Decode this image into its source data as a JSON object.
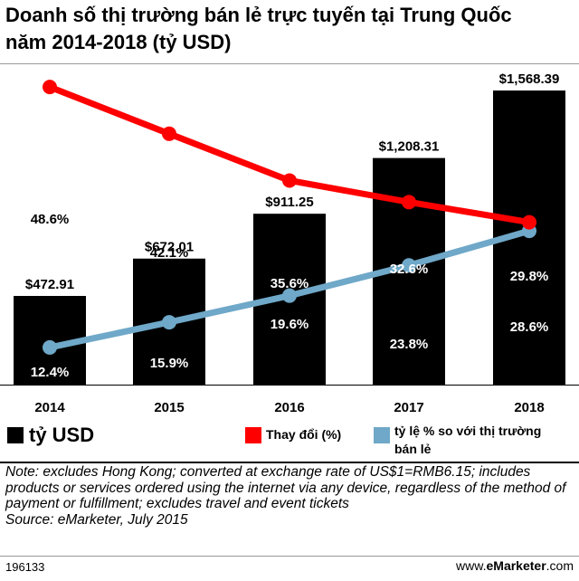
{
  "title_line1": "Doanh số thị trường bán lẻ trực tuyến tại Trung Quốc",
  "title_line2": "năm 2014-2018 (tỷ USD)",
  "chart_data": {
    "type": "bar",
    "categories": [
      "2014",
      "2015",
      "2016",
      "2017",
      "2018"
    ],
    "series": [
      {
        "name": "tỷ USD",
        "type": "bar",
        "values": [
          472.91,
          672.01,
          911.25,
          1208.31,
          1568.39
        ],
        "labels": [
          "$472.91",
          "$672.01",
          "$911.25",
          "$1,208.31",
          "$1,568.39"
        ],
        "color": "#000000"
      },
      {
        "name": "Thay đổi (%)",
        "type": "line",
        "values": [
          48.6,
          42.1,
          35.6,
          32.6,
          29.8
        ],
        "labels": [
          "48.6%",
          "42.1%",
          "35.6%",
          "32.6%",
          "29.8%"
        ],
        "color": "#ff0000"
      },
      {
        "name": "tỷ lệ % so với thị trường bán lẻ",
        "type": "line",
        "values": [
          12.4,
          15.9,
          19.6,
          23.8,
          28.6
        ],
        "labels": [
          "12.4%",
          "15.9%",
          "19.6%",
          "23.8%",
          "28.6%"
        ],
        "color": "#6fa8c8"
      }
    ]
  },
  "legend": {
    "bar_label": "tỷ USD",
    "change_label": "Thay đổi (%)",
    "share_label_line1": "tỷ lệ % so với thị trường",
    "share_label_line2": "bán lẻ"
  },
  "notes": {
    "note": "Note: excludes Hong Kong; converted at exchange rate of US$1=RMB6.15; includes products or services ordered using the internet via any device, regardless of the method of payment or fulfillment; excludes travel and event tickets",
    "source": "Source: eMarketer, July 2015"
  },
  "footer": {
    "id": "196133",
    "brand_prefix": "www.",
    "brand_name": "eMarketer",
    "brand_suffix": ".com"
  }
}
